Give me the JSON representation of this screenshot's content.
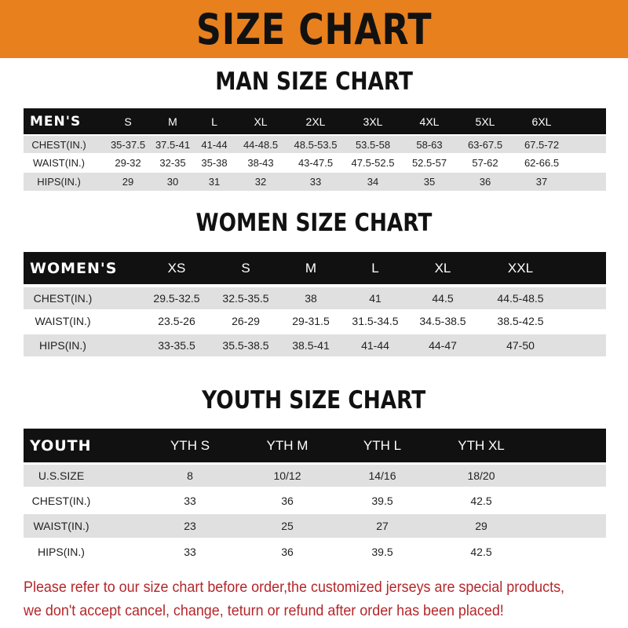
{
  "banner_title": "SIZE CHART",
  "colors": {
    "banner": "#e8801e",
    "header_row": "#111111",
    "stripe": "#e0e0e0",
    "notice": "#b5262a"
  },
  "men": {
    "title": "MAN SIZE CHART",
    "headers": [
      "MEN'S",
      "S",
      "M",
      "L",
      "XL",
      "2XL",
      "3XL",
      "4XL",
      "5XL",
      "6XL"
    ],
    "rows": [
      [
        "CHEST(IN.)",
        "35-37.5",
        "37.5-41",
        "41-44",
        "44-48.5",
        "48.5-53.5",
        "53.5-58",
        "58-63",
        "63-67.5",
        "67.5-72"
      ],
      [
        "WAIST(IN.)",
        "29-32",
        "32-35",
        "35-38",
        "38-43",
        "43-47.5",
        "47.5-52.5",
        "52.5-57",
        "57-62",
        "62-66.5"
      ],
      [
        "HIPS(IN.)",
        "29",
        "30",
        "31",
        "32",
        "33",
        "34",
        "35",
        "36",
        "37"
      ]
    ]
  },
  "women": {
    "title": "WOMEN SIZE CHART",
    "headers": [
      "WOMEN'S",
      "XS",
      "S",
      "M",
      "L",
      "XL",
      "XXL"
    ],
    "rows": [
      [
        "CHEST(IN.)",
        "29.5-32.5",
        "32.5-35.5",
        "38",
        "41",
        "44.5",
        "44.5-48.5"
      ],
      [
        "WAIST(IN.)",
        "23.5-26",
        "26-29",
        "29-31.5",
        "31.5-34.5",
        "34.5-38.5",
        "38.5-42.5"
      ],
      [
        "HIPS(IN.)",
        "33-35.5",
        "35.5-38.5",
        "38.5-41",
        "41-44",
        "44-47",
        "47-50"
      ]
    ]
  },
  "youth": {
    "title": "YOUTH SIZE CHART",
    "headers": [
      "YOUTH",
      "YTH S",
      "YTH M",
      "YTH L",
      "YTH XL"
    ],
    "rows": [
      [
        "U.S.SIZE",
        "8",
        "10/12",
        "14/16",
        "18/20"
      ],
      [
        "CHEST(IN.)",
        "33",
        "36",
        "39.5",
        "42.5"
      ],
      [
        "WAIST(IN.)",
        "23",
        "25",
        "27",
        "29"
      ],
      [
        "HIPS(IN.)",
        "33",
        "36",
        "39.5",
        "42.5"
      ]
    ]
  },
  "notice": {
    "line1": "Please refer to our size chart before order,the customized jerseys are special products,",
    "line2": "we don't accept cancel, change, teturn or refund after order has been placed!"
  }
}
